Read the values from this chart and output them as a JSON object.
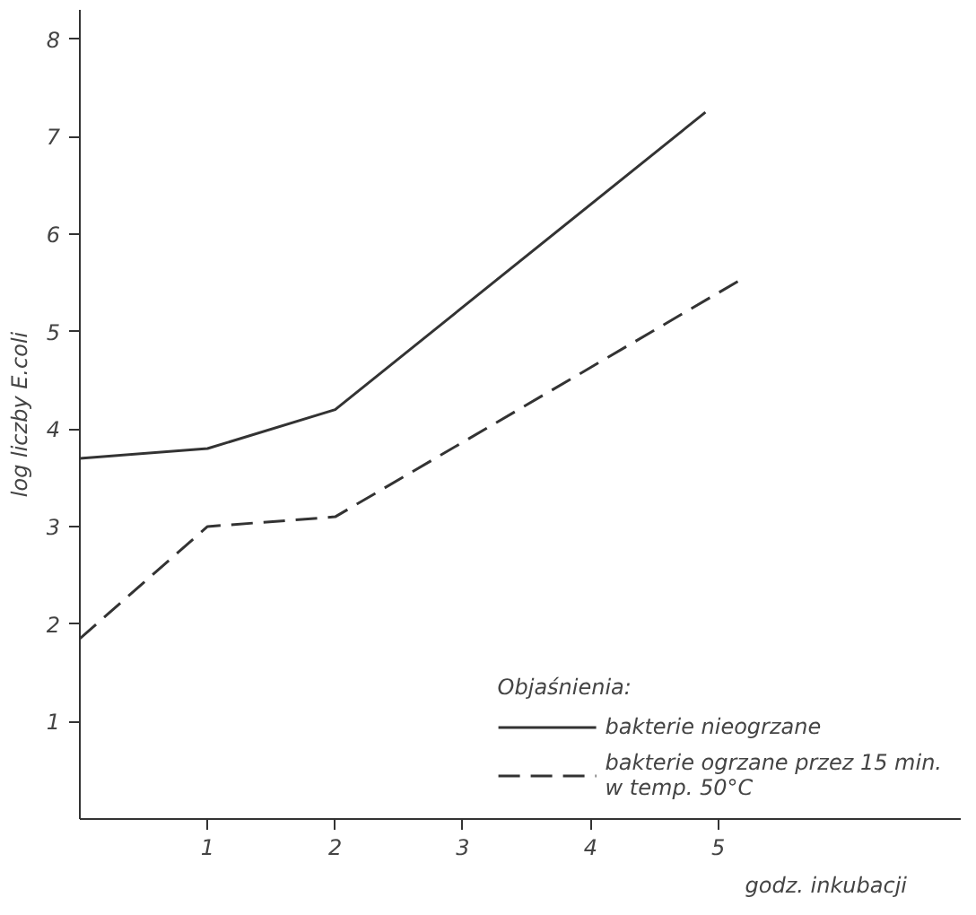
{
  "chart_data": {
    "type": "line",
    "xlabel": "godz. inkubacji",
    "ylabel": "log liczby E.coli",
    "legend_title": "Objaśnienia:",
    "legend": "bottom right",
    "grid": false,
    "marker": "none",
    "xlim": [
      0,
      6.9
    ],
    "ylim": [
      0,
      8.3
    ],
    "xticks": [
      1,
      2,
      3,
      4,
      5
    ],
    "yticks": [
      1,
      2,
      3,
      4,
      5,
      6,
      7,
      8
    ],
    "series": [
      {
        "name": "bakterie nieogrzane",
        "color": "#333333",
        "line_style": "solid",
        "x": [
          0,
          1,
          2,
          4.9
        ],
        "values": [
          3.7,
          3.8,
          4.2,
          7.25
        ]
      },
      {
        "name": "bakterie ogrzane przez 15 min.\nw temp. 50°C",
        "color": "#333333",
        "line_style": "dashed",
        "x": [
          0,
          1,
          2,
          5.2
        ],
        "values": [
          1.85,
          3.0,
          3.1,
          5.55
        ]
      }
    ]
  }
}
